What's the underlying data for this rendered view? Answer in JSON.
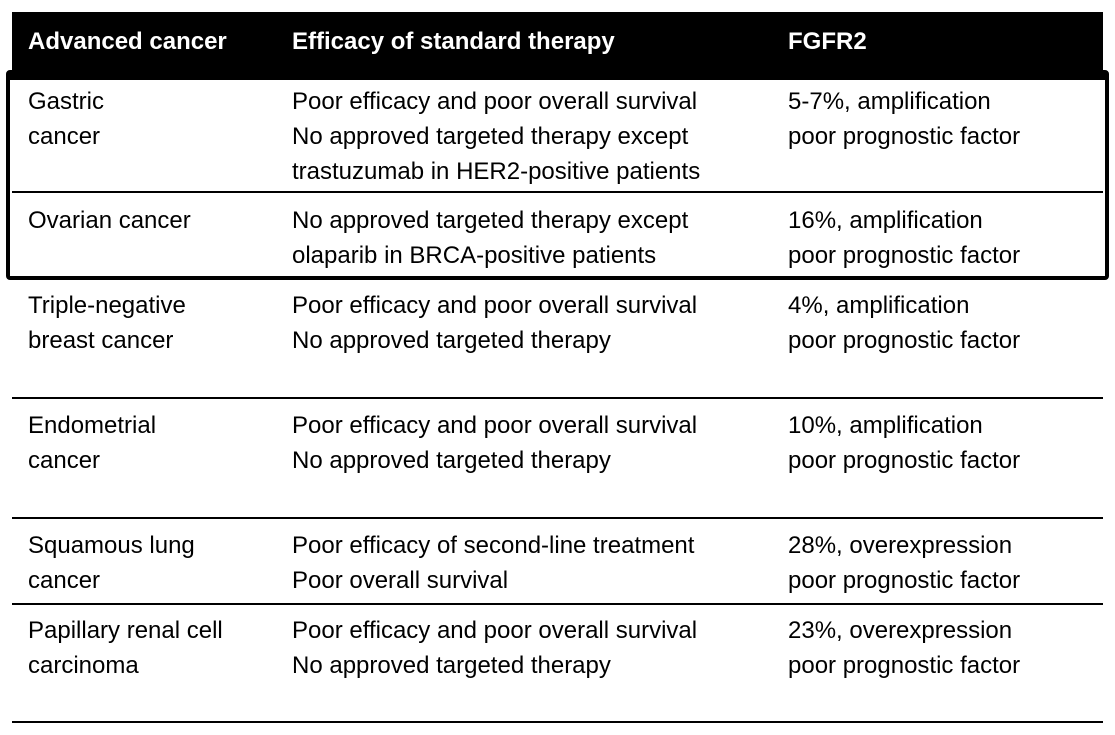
{
  "header": {
    "col1": "Advanced cancer",
    "col2": "Efficacy of standard therapy",
    "col3": "FGFR2"
  },
  "rows": [
    {
      "cancer": [
        "Gastric",
        "cancer"
      ],
      "efficacy": [
        "Poor efficacy and poor overall survival",
        "No approved targeted therapy except",
        "trastuzumab in HER2-positive patients"
      ],
      "fgfr2": [
        "5-7%, amplification",
        "poor prognostic factor"
      ]
    },
    {
      "cancer": [
        "Ovarian cancer"
      ],
      "efficacy": [
        "No approved targeted therapy except",
        "olaparib in BRCA-positive patients"
      ],
      "fgfr2": [
        "16%, amplification",
        "poor prognostic factor"
      ]
    },
    {
      "cancer": [
        "Triple-negative",
        "breast cancer"
      ],
      "efficacy": [
        "Poor efficacy and poor overall survival",
        "No approved targeted therapy"
      ],
      "fgfr2": [
        "4%, amplification",
        "poor prognostic factor"
      ]
    },
    {
      "cancer": [
        "Endometrial",
        "cancer"
      ],
      "efficacy": [
        "Poor efficacy and poor overall survival",
        "No approved targeted therapy"
      ],
      "fgfr2": [
        "10%, amplification",
        "poor prognostic factor"
      ]
    },
    {
      "cancer": [
        "Squamous lung",
        "cancer"
      ],
      "efficacy": [
        "Poor efficacy of second-line treatment",
        "Poor overall survival"
      ],
      "fgfr2": [
        "28%, overexpression",
        "poor prognostic factor"
      ]
    },
    {
      "cancer": [
        "Papillary renal cell",
        "carcinoma"
      ],
      "efficacy": [
        "Poor efficacy and poor overall survival",
        "No approved targeted therapy"
      ],
      "fgfr2": [
        "23%, overexpression",
        "poor prognostic factor"
      ]
    }
  ]
}
